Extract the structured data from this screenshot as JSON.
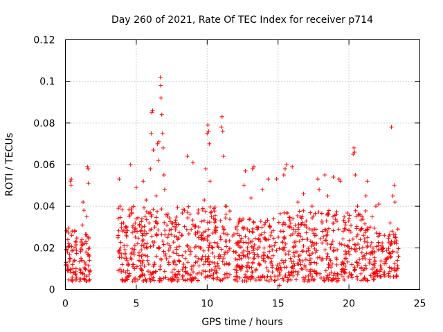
{
  "chart_data": {
    "type": "scatter",
    "title": "Day 260 of 2021, Rate Of TEC Index for receiver p714",
    "xlabel": "GPS time / hours",
    "ylabel": "ROTI / TECUs",
    "xlim": [
      0,
      25
    ],
    "ylim": [
      0,
      0.12
    ],
    "grid": true,
    "marker": "+",
    "color": "#ff0000",
    "x_ticks": [
      0,
      5,
      10,
      15,
      20,
      25
    ],
    "x_tick_labels": [
      "0",
      "5",
      "10",
      "15",
      "20",
      "25"
    ],
    "y_ticks": [
      0,
      0.02,
      0.04,
      0.06,
      0.08,
      0.1,
      0.12
    ],
    "y_tick_labels": [
      "0",
      "0.02",
      "0.04",
      "0.06",
      "0.08",
      "0.1",
      "0.12"
    ],
    "series": [
      {
        "name": "ROTI",
        "points": [
          [
            0.05,
            0.012
          ],
          [
            0.1,
            0.028
          ],
          [
            0.15,
            0.018
          ],
          [
            0.2,
            0.009
          ],
          [
            0.25,
            0.022
          ],
          [
            0.3,
            0.015
          ],
          [
            0.35,
            0.052
          ],
          [
            0.4,
            0.05
          ],
          [
            0.42,
            0.053
          ],
          [
            0.45,
            0.026
          ],
          [
            0.5,
            0.012
          ],
          [
            0.55,
            0.019
          ],
          [
            0.6,
            0.008
          ],
          [
            0.65,
            0.014
          ],
          [
            0.7,
            0.023
          ],
          [
            0.75,
            0.01
          ],
          [
            1.1,
            0.015
          ],
          [
            1.2,
            0.031
          ],
          [
            1.25,
            0.042
          ],
          [
            1.3,
            0.038
          ],
          [
            1.35,
            0.022
          ],
          [
            1.4,
            0.01
          ],
          [
            1.45,
            0.018
          ],
          [
            1.5,
            0.035
          ],
          [
            1.55,
            0.059
          ],
          [
            1.6,
            0.058
          ],
          [
            1.62,
            0.051
          ],
          [
            1.65,
            0.025
          ],
          [
            1.7,
            0.014
          ],
          [
            1.75,
            0.009
          ],
          [
            3.8,
            0.053
          ],
          [
            3.85,
            0.04
          ],
          [
            3.9,
            0.02
          ],
          [
            4.0,
            0.012
          ],
          [
            4.1,
            0.032
          ],
          [
            4.2,
            0.015
          ],
          [
            4.3,
            0.026
          ],
          [
            4.4,
            0.009
          ],
          [
            4.5,
            0.035
          ],
          [
            4.6,
            0.06
          ],
          [
            4.7,
            0.018
          ],
          [
            4.8,
            0.012
          ],
          [
            4.9,
            0.028
          ],
          [
            5.0,
            0.049
          ],
          [
            5.1,
            0.022
          ],
          [
            5.2,
            0.014
          ],
          [
            5.3,
            0.01
          ],
          [
            5.4,
            0.03
          ],
          [
            5.5,
            0.052
          ],
          [
            5.6,
            0.02
          ],
          [
            5.7,
            0.043
          ],
          [
            5.8,
            0.016
          ],
          [
            5.9,
            0.032
          ],
          [
            6.0,
            0.058
          ],
          [
            6.05,
            0.075
          ],
          [
            6.1,
            0.085
          ],
          [
            6.15,
            0.086
          ],
          [
            6.2,
            0.067
          ],
          [
            6.3,
            0.03
          ],
          [
            6.4,
            0.045
          ],
          [
            6.5,
            0.07
          ],
          [
            6.55,
            0.062
          ],
          [
            6.6,
            0.071
          ],
          [
            6.7,
            0.102
          ],
          [
            6.72,
            0.098
          ],
          [
            6.75,
            0.092
          ],
          [
            6.8,
            0.084
          ],
          [
            6.85,
            0.075
          ],
          [
            6.9,
            0.068
          ],
          [
            6.95,
            0.055
          ],
          [
            7.0,
            0.048
          ],
          [
            7.1,
            0.036
          ],
          [
            7.2,
            0.025
          ],
          [
            7.3,
            0.012
          ],
          [
            7.4,
            0.02
          ],
          [
            7.6,
            0.018
          ],
          [
            7.8,
            0.03
          ],
          [
            8.0,
            0.014
          ],
          [
            8.2,
            0.026
          ],
          [
            8.4,
            0.038
          ],
          [
            8.6,
            0.064
          ],
          [
            8.8,
            0.02
          ],
          [
            9.0,
            0.061
          ],
          [
            9.2,
            0.016
          ],
          [
            9.4,
            0.03
          ],
          [
            9.6,
            0.024
          ],
          [
            9.8,
            0.043
          ],
          [
            9.9,
            0.058
          ],
          [
            10.0,
            0.075
          ],
          [
            10.05,
            0.079
          ],
          [
            10.1,
            0.076
          ],
          [
            10.15,
            0.07
          ],
          [
            10.2,
            0.052
          ],
          [
            10.3,
            0.035
          ],
          [
            10.4,
            0.02
          ],
          [
            10.6,
            0.03
          ],
          [
            10.8,
            0.016
          ],
          [
            11.0,
            0.078
          ],
          [
            11.05,
            0.083
          ],
          [
            11.1,
            0.076
          ],
          [
            11.15,
            0.064
          ],
          [
            11.3,
            0.04
          ],
          [
            11.5,
            0.012
          ],
          [
            12.0,
            0.018
          ],
          [
            12.2,
            0.032
          ],
          [
            12.4,
            0.01
          ],
          [
            12.6,
            0.05
          ],
          [
            12.7,
            0.057
          ],
          [
            12.9,
            0.022
          ],
          [
            13.1,
            0.044
          ],
          [
            13.2,
            0.058
          ],
          [
            13.3,
            0.059
          ],
          [
            13.5,
            0.03
          ],
          [
            13.7,
            0.012
          ],
          [
            13.9,
            0.048
          ],
          [
            14.1,
            0.024
          ],
          [
            14.3,
            0.053
          ],
          [
            14.5,
            0.015
          ],
          [
            14.7,
            0.034
          ],
          [
            14.9,
            0.053
          ],
          [
            15.0,
            0.005
          ],
          [
            15.1,
            0.002
          ],
          [
            15.2,
            0.028
          ],
          [
            15.4,
            0.055
          ],
          [
            15.5,
            0.058
          ],
          [
            15.6,
            0.06
          ],
          [
            15.8,
            0.03
          ],
          [
            16.0,
            0.059
          ],
          [
            16.2,
            0.018
          ],
          [
            16.4,
            0.042
          ],
          [
            16.6,
            0.012
          ],
          [
            16.8,
            0.046
          ],
          [
            17.0,
            0.03
          ],
          [
            17.2,
            0.014
          ],
          [
            17.4,
            0.04
          ],
          [
            17.6,
            0.022
          ],
          [
            17.8,
            0.053
          ],
          [
            17.9,
            0.048
          ],
          [
            18.1,
            0.032
          ],
          [
            18.3,
            0.055
          ],
          [
            18.5,
            0.045
          ],
          [
            18.7,
            0.02
          ],
          [
            18.9,
            0.054
          ],
          [
            19.1,
            0.036
          ],
          [
            19.3,
            0.053
          ],
          [
            19.4,
            0.052
          ],
          [
            19.6,
            0.028
          ],
          [
            19.8,
            0.015
          ],
          [
            20.0,
            0.034
          ],
          [
            20.2,
            0.012
          ],
          [
            20.3,
            0.065
          ],
          [
            20.35,
            0.068
          ],
          [
            20.4,
            0.066
          ],
          [
            20.45,
            0.055
          ],
          [
            20.6,
            0.04
          ],
          [
            20.8,
            0.024
          ],
          [
            21.0,
            0.016
          ],
          [
            21.2,
            0.045
          ],
          [
            21.3,
            0.052
          ],
          [
            21.5,
            0.03
          ],
          [
            21.7,
            0.012
          ],
          [
            21.9,
            0.04
          ],
          [
            22.1,
            0.041
          ],
          [
            22.3,
            0.02
          ],
          [
            22.5,
            0.026
          ],
          [
            22.7,
            0.015
          ],
          [
            22.9,
            0.032
          ],
          [
            23.0,
            0.078
          ],
          [
            23.1,
            0.045
          ],
          [
            23.2,
            0.05
          ],
          [
            23.25,
            0.042
          ],
          [
            23.3,
            0.025
          ],
          [
            23.4,
            0.018
          ],
          [
            23.45,
            0.029
          ]
        ],
        "dense_bands": [
          {
            "x": [
              0.0,
              0.8
            ],
            "y": [
              0.004,
              0.03
            ]
          },
          {
            "x": [
              1.0,
              1.8
            ],
            "y": [
              0.004,
              0.027
            ]
          },
          {
            "x": [
              3.7,
              7.5
            ],
            "y": [
              0.004,
              0.04
            ]
          },
          {
            "x": [
              7.5,
              11.6
            ],
            "y": [
              0.004,
              0.04
            ]
          },
          {
            "x": [
              11.8,
              15.0
            ],
            "y": [
              0.004,
              0.034
            ]
          },
          {
            "x": [
              15.0,
              21.8
            ],
            "y": [
              0.004,
              0.038
            ]
          },
          {
            "x": [
              21.8,
              23.5
            ],
            "y": [
              0.006,
              0.028
            ]
          }
        ]
      }
    ]
  }
}
